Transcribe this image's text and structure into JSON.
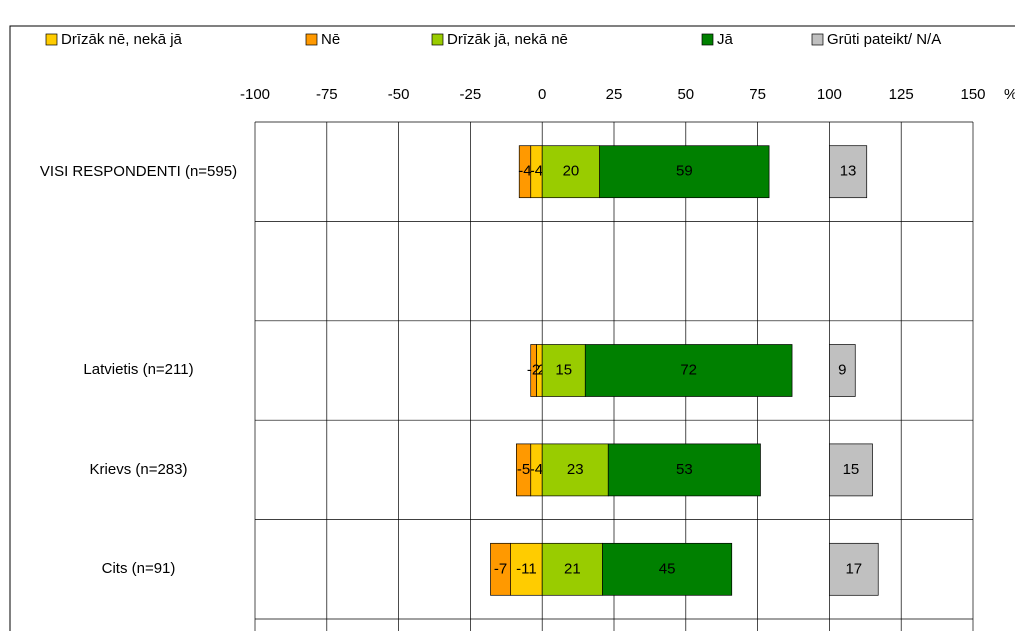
{
  "chart_data": {
    "type": "diverging_bar",
    "categories": [
      "VISI RESPONDENTI (n=595)",
      null,
      "Latvietis (n=211)",
      "Krievs (n=283)",
      "Cits (n=91)"
    ],
    "series": [
      {
        "name": "Drīzāk nē, nekā jā",
        "color": "#ffcc00",
        "values": [
          -4,
          null,
          -2,
          -4,
          -11
        ]
      },
      {
        "name": "Nē",
        "color": "#ff9900",
        "values": [
          -4,
          null,
          -2,
          -5,
          -7
        ]
      },
      {
        "name": "Drīzāk jā, nekā nē",
        "color": "#99cc00",
        "values": [
          20,
          null,
          15,
          23,
          21
        ]
      },
      {
        "name": "Jā",
        "color": "#008000",
        "values": [
          59,
          null,
          72,
          53,
          45
        ]
      },
      {
        "name": "Grūti pateikt/ N/A",
        "color": "#c0c0c0",
        "values": [
          13,
          null,
          9,
          15,
          17
        ],
        "start": 100
      }
    ],
    "xlim": [
      -100,
      150
    ],
    "xticks": [
      -100,
      -75,
      -50,
      -25,
      0,
      25,
      50,
      75,
      100,
      125,
      150
    ],
    "x_unit": "%",
    "grid": true
  }
}
